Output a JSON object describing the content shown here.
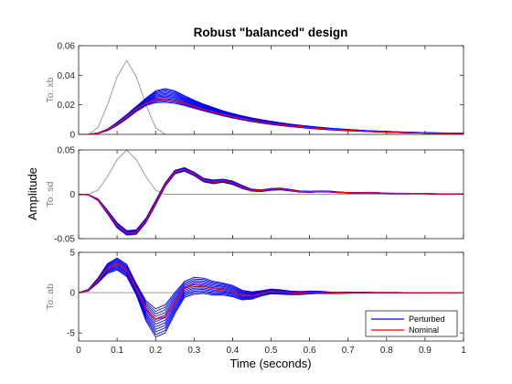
{
  "chart_data": {
    "type": "line",
    "title": "Robust \"balanced\" design",
    "xlabel": "Time (seconds)",
    "ylabel": "Amplitude",
    "grid": false,
    "legend": {
      "position": "bottom-right",
      "entries": [
        "Perturbed",
        "Nominal"
      ]
    },
    "colors": {
      "perturbed": "#0000ff",
      "nominal": "#ff0000",
      "reference": "#9b9b9b"
    },
    "xlim": [
      0,
      1
    ],
    "xticks": [
      "0",
      "0.1",
      "0.2",
      "0.3",
      "0.4",
      "0.5",
      "0.6",
      "0.7",
      "0.8",
      "0.9",
      "1"
    ],
    "x": [
      0,
      0.025,
      0.05,
      0.075,
      0.1,
      0.125,
      0.15,
      0.175,
      0.2,
      0.225,
      0.25,
      0.275,
      0.3,
      0.325,
      0.35,
      0.375,
      0.4,
      0.425,
      0.45,
      0.475,
      0.5,
      0.525,
      0.55,
      0.575,
      0.6,
      0.625,
      0.65,
      0.675,
      0.7,
      0.725,
      0.75,
      0.775,
      0.8,
      0.825,
      0.85,
      0.875,
      0.9,
      0.925,
      0.95,
      0.975,
      1
    ],
    "panels": [
      {
        "ylabel": "To: xb",
        "ylim": [
          0,
          0.06
        ],
        "yticks": [
          0,
          0.02,
          0.04,
          0.06
        ],
        "yticklabels": [
          "0",
          "0.02",
          "0.04",
          "0.06"
        ],
        "reference": [
          0,
          0,
          0.0045,
          0.02,
          0.039,
          0.05,
          0.039,
          0.02,
          0.0045,
          0,
          0,
          0,
          0,
          0,
          0,
          0,
          0,
          0,
          0,
          0,
          0,
          0,
          0,
          0,
          0,
          0,
          0,
          0,
          0,
          0,
          0,
          0,
          0,
          0,
          0,
          0,
          0,
          0,
          0,
          0,
          0
        ],
        "nominal": [
          0,
          0,
          0.0008,
          0.003,
          0.007,
          0.012,
          0.017,
          0.021,
          0.0235,
          0.0238,
          0.0228,
          0.021,
          0.019,
          0.017,
          0.0152,
          0.0135,
          0.012,
          0.0106,
          0.0094,
          0.0083,
          0.0074,
          0.0066,
          0.0058,
          0.0051,
          0.0045,
          0.004,
          0.0035,
          0.0031,
          0.0027,
          0.0024,
          0.0021,
          0.0018,
          0.0016,
          0.0014,
          0.0012,
          0.0011,
          0.0009,
          0.0008,
          0.0007,
          0.0006,
          0.0005
        ],
        "perturbed_min": [
          0,
          0,
          0.0006,
          0.0025,
          0.006,
          0.0105,
          0.0155,
          0.0195,
          0.0215,
          0.0218,
          0.021,
          0.0195,
          0.0177,
          0.0159,
          0.0142,
          0.0126,
          0.0111,
          0.0098,
          0.0086,
          0.0076,
          0.0067,
          0.0059,
          0.0052,
          0.0046,
          0.004,
          0.0035,
          0.0031,
          0.0027,
          0.0024,
          0.0021,
          0.0018,
          0.0016,
          0.0014,
          0.0012,
          0.001,
          0.0009,
          0.0008,
          0.0007,
          0.0006,
          0.0005,
          0.0004
        ],
        "perturbed_max": [
          0,
          0,
          0.001,
          0.0036,
          0.0082,
          0.0135,
          0.019,
          0.0245,
          0.0295,
          0.031,
          0.0295,
          0.0262,
          0.0232,
          0.0205,
          0.0182,
          0.016,
          0.0142,
          0.0126,
          0.0112,
          0.01,
          0.0089,
          0.0079,
          0.007,
          0.0062,
          0.0055,
          0.0049,
          0.0043,
          0.0038,
          0.0034,
          0.003,
          0.0026,
          0.0023,
          0.0021,
          0.0018,
          0.0016,
          0.0014,
          0.0012,
          0.0011,
          0.001,
          0.0009,
          0.0008
        ]
      },
      {
        "ylabel": "To: sd",
        "ylim": [
          -0.05,
          0.05
        ],
        "yticks": [
          -0.05,
          0,
          0.05
        ],
        "yticklabels": [
          "-0.05",
          "0",
          "0.05"
        ],
        "reference": [
          0,
          0,
          0.0045,
          0.02,
          0.039,
          0.05,
          0.039,
          0.02,
          0.0045,
          0,
          0,
          0,
          0,
          0,
          0,
          0,
          0,
          0,
          0,
          0,
          0,
          0,
          0,
          0,
          0,
          0,
          0,
          0,
          0,
          0,
          0,
          0,
          0,
          0,
          0,
          0,
          0,
          0,
          0,
          0,
          0
        ],
        "nominal": [
          0,
          -0.0006,
          -0.006,
          -0.02,
          -0.035,
          -0.044,
          -0.043,
          -0.03,
          -0.01,
          0.011,
          0.025,
          0.028,
          0.023,
          0.016,
          0.014,
          0.0155,
          0.013,
          0.008,
          0.0045,
          0.004,
          0.0055,
          0.006,
          0.0045,
          0.003,
          0.0028,
          0.0032,
          0.003,
          0.0022,
          0.0016,
          0.0016,
          0.0018,
          0.0015,
          0.0011,
          0.0009,
          0.0009,
          0.0008,
          0.0006,
          0.0004,
          0.0003,
          0.0002,
          0.0002
        ],
        "perturbed_min": [
          0,
          -0.0008,
          -0.007,
          -0.022,
          -0.038,
          -0.046,
          -0.045,
          -0.032,
          -0.012,
          0.009,
          0.023,
          0.026,
          0.021,
          0.014,
          0.012,
          0.0135,
          0.011,
          0.0065,
          0.0035,
          0.003,
          0.0045,
          0.005,
          0.0037,
          0.0024,
          0.0022,
          0.0026,
          0.0024,
          0.0017,
          0.0012,
          0.0012,
          0.0014,
          0.0012,
          0.0008,
          0.0006,
          0.0006,
          0.0005,
          0.0004,
          0.0002,
          0.0001,
          0.0001,
          0
        ],
        "perturbed_max": [
          0,
          -0.0004,
          -0.005,
          -0.018,
          -0.032,
          -0.041,
          -0.04,
          -0.027,
          -0.007,
          0.013,
          0.027,
          0.03,
          0.025,
          0.018,
          0.016,
          0.017,
          0.015,
          0.01,
          0.0058,
          0.005,
          0.0065,
          0.007,
          0.0055,
          0.0038,
          0.0034,
          0.0038,
          0.0036,
          0.0027,
          0.002,
          0.002,
          0.0022,
          0.0019,
          0.0014,
          0.0012,
          0.0012,
          0.0011,
          0.0009,
          0.0007,
          0.0005,
          0.0004,
          0.0003
        ]
      },
      {
        "ylabel": "To: ab",
        "ylim": [
          -6,
          5
        ],
        "yticks": [
          -5,
          0,
          5
        ],
        "yticklabels": [
          "-5",
          "0",
          "5"
        ],
        "reference": [
          0,
          0,
          0,
          0,
          0,
          0,
          0,
          0,
          0,
          0,
          0,
          0,
          0,
          0,
          0,
          0,
          0,
          0,
          0,
          0,
          0,
          0,
          0,
          0,
          0,
          0,
          0,
          0,
          0,
          0,
          0,
          0,
          0,
          0,
          0,
          0,
          0,
          0,
          0,
          0,
          0
        ],
        "nominal": [
          0,
          0.3,
          1.5,
          3.0,
          3.6,
          2.8,
          0.5,
          -2.0,
          -3.3,
          -3.0,
          -1.2,
          0.6,
          1.0,
          0.8,
          0.5,
          0.4,
          0.2,
          -0.3,
          -0.4,
          -0.1,
          0.15,
          0.1,
          0,
          -0.05,
          0.05,
          0.05,
          0,
          -0.03,
          0,
          0.02,
          0,
          0,
          0,
          0,
          0,
          0,
          0,
          0,
          0,
          0,
          0
        ],
        "perturbed_min": [
          0,
          0.2,
          1.2,
          2.4,
          2.8,
          2.0,
          -0.3,
          -3.5,
          -5.5,
          -5.0,
          -2.6,
          -0.6,
          -0.2,
          -0.1,
          -0.3,
          -0.3,
          -0.5,
          -0.9,
          -0.8,
          -0.4,
          -0.15,
          -0.2,
          -0.25,
          -0.25,
          -0.15,
          -0.1,
          -0.12,
          -0.1,
          -0.06,
          -0.05,
          -0.05,
          -0.04,
          -0.03,
          -0.03,
          -0.02,
          -0.02,
          -0.02,
          -0.01,
          -0.01,
          -0.01,
          0
        ],
        "perturbed_max": [
          0,
          0.4,
          1.8,
          3.6,
          4.3,
          3.5,
          1.1,
          -1.0,
          -2.0,
          -1.5,
          0.0,
          1.4,
          1.9,
          1.8,
          1.4,
          1.2,
          0.9,
          0.3,
          0.1,
          0.25,
          0.45,
          0.35,
          0.2,
          0.15,
          0.2,
          0.18,
          0.1,
          0.05,
          0.06,
          0.07,
          0.05,
          0.03,
          0.03,
          0.03,
          0.02,
          0.02,
          0.02,
          0.01,
          0.01,
          0.01,
          0
        ]
      }
    ]
  }
}
